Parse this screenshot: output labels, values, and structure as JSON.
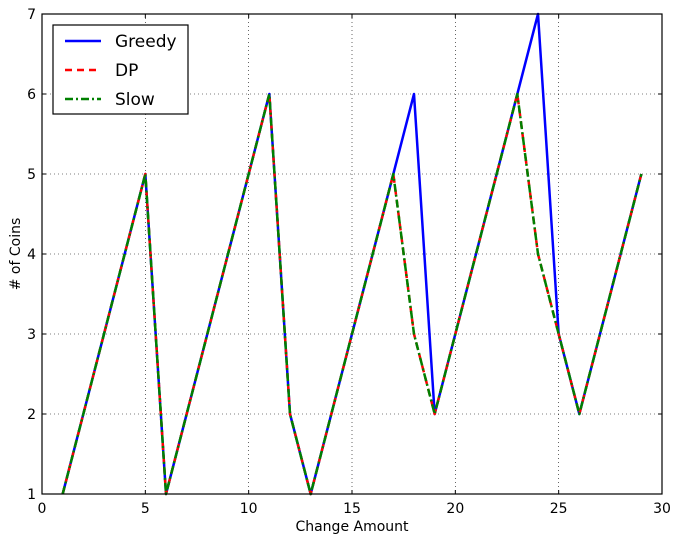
{
  "chart_data": {
    "type": "line",
    "title": "",
    "xlabel": "Change Amount",
    "ylabel": "# of Coins",
    "xlim": [
      0,
      30
    ],
    "ylim": [
      1,
      7
    ],
    "xticks": [
      0,
      5,
      10,
      15,
      20,
      25,
      30
    ],
    "yticks": [
      1,
      2,
      3,
      4,
      5,
      6,
      7
    ],
    "grid": true,
    "legend_position": "top-left",
    "x": [
      1,
      2,
      3,
      4,
      5,
      6,
      7,
      8,
      9,
      10,
      11,
      12,
      13,
      14,
      15,
      16,
      17,
      18,
      19,
      20,
      21,
      22,
      23,
      24,
      25,
      26,
      27,
      28,
      29
    ],
    "series": [
      {
        "name": "Greedy",
        "color": "#0000ff",
        "style": "solid",
        "values": [
          1,
          2,
          3,
          4,
          5,
          1,
          2,
          3,
          4,
          5,
          6,
          2,
          1,
          2,
          3,
          4,
          5,
          6,
          2,
          3,
          4,
          5,
          6,
          7,
          3,
          2,
          3,
          4,
          5
        ]
      },
      {
        "name": "DP",
        "color": "#ff0000",
        "style": "dashed",
        "values": [
          1,
          2,
          3,
          4,
          5,
          1,
          2,
          3,
          4,
          5,
          6,
          2,
          1,
          2,
          3,
          4,
          5,
          3,
          2,
          3,
          4,
          5,
          6,
          4,
          3,
          2,
          3,
          4,
          5
        ]
      },
      {
        "name": "Slow",
        "color": "#008000",
        "style": "dashdot",
        "values": [
          1,
          2,
          3,
          4,
          5,
          1,
          2,
          3,
          4,
          5,
          6,
          2,
          1,
          2,
          3,
          4,
          5,
          3,
          2,
          3,
          4,
          5,
          6,
          4,
          3,
          2,
          3,
          4,
          5
        ]
      }
    ]
  }
}
